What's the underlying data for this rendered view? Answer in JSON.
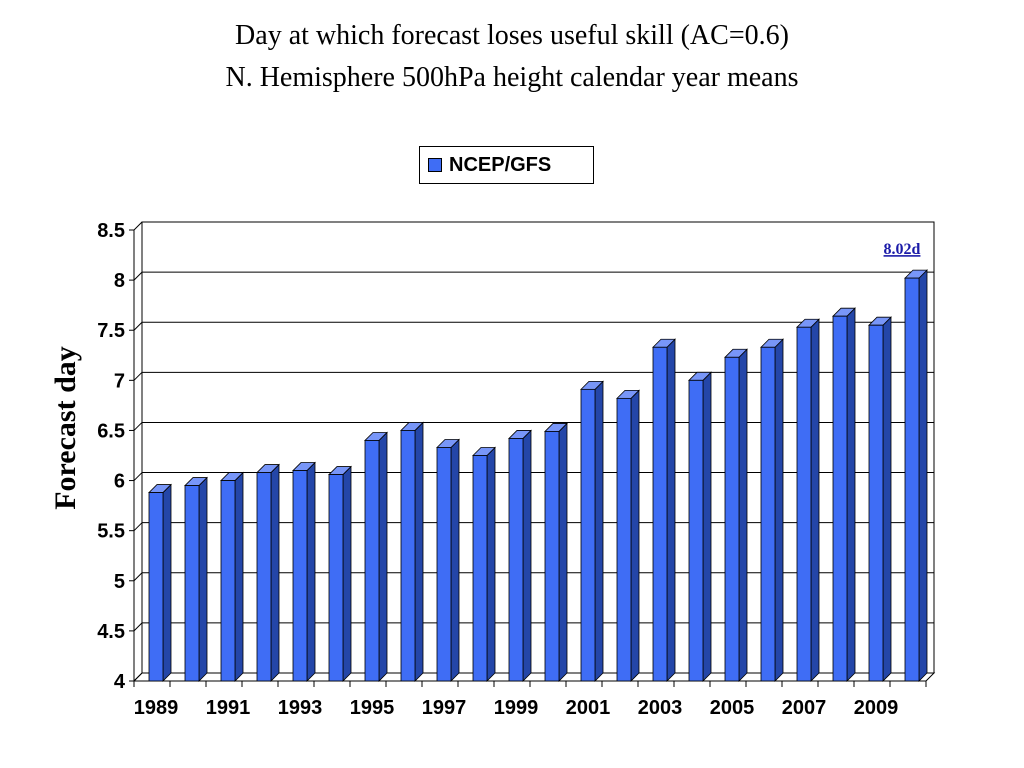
{
  "chart_data": {
    "type": "bar",
    "title": "Day at which forecast loses useful skill (AC=0.6)",
    "subtitle": "N. Hemisphere 500hPa height calendar year means",
    "ylabel": "Forecast day",
    "xlabel": "",
    "ylim": [
      4,
      8.5
    ],
    "yticks": [
      "4",
      "4.5",
      "5",
      "5.5",
      "6",
      "6.5",
      "7",
      "7.5",
      "8",
      "8.5"
    ],
    "categories": [
      "1989",
      "1990",
      "1991",
      "1992",
      "1993",
      "1994",
      "1995",
      "1996",
      "1997",
      "1998",
      "1999",
      "2000",
      "2001",
      "2002",
      "2003",
      "2004",
      "2005",
      "2006",
      "2007",
      "2008",
      "2009",
      "2010"
    ],
    "xtick_labels": [
      "1989",
      "1991",
      "1993",
      "1995",
      "1997",
      "1999",
      "2001",
      "2003",
      "2005",
      "2007",
      "2009"
    ],
    "series": [
      {
        "name": "NCEP/GFS",
        "color": "#3f6df5",
        "values": [
          5.88,
          5.95,
          6.0,
          6.08,
          6.1,
          6.06,
          6.4,
          6.5,
          6.33,
          6.25,
          6.42,
          6.49,
          6.91,
          6.82,
          7.33,
          7.0,
          7.23,
          7.33,
          7.53,
          7.64,
          7.55,
          8.02
        ]
      }
    ],
    "annotation": {
      "text": "8.02d",
      "category": "2010"
    },
    "legend": "top-center",
    "grid": true
  }
}
